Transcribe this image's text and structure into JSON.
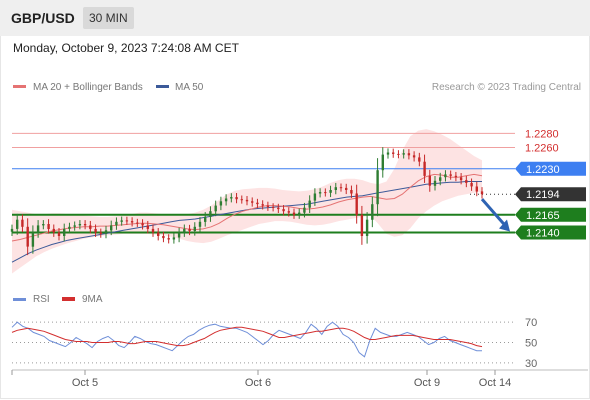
{
  "header": {
    "pair": "GBP/USD",
    "timeframe": "30 MIN"
  },
  "datetime": "Monday, October 9, 2023 7:24:08 AM CET",
  "legend": {
    "ma20": "MA 20 + Bollinger Bands",
    "ma50": "MA 50",
    "credit": "Research © 2023 Trading Central",
    "rsi": "RSI",
    "rsi_ma": "9MA"
  },
  "colors": {
    "candle_up": "#2e7d32",
    "candle_down": "#c62828",
    "ma20": "#e57373",
    "ma50": "#3c5a99",
    "bollinger_fill": "#fde3e3",
    "resistance": "#d32f2f",
    "pivot": "#3d7ff1",
    "support": "#1e7e1e",
    "last": "#333333",
    "arrow": "#2e63b3",
    "rsi": "#6f8fd8",
    "rsi_ma": "#d32f2f"
  },
  "chart_data": [
    {
      "type": "candlestick",
      "title": "GBP/USD 30 MIN",
      "price_range": [
        1.207,
        1.233
      ],
      "x_ticks": [
        "Oct 5",
        "Oct 6",
        "Oct 9",
        "Oct 14"
      ],
      "levels": [
        {
          "value": 1.228,
          "label": "1.2280",
          "kind": "resistance",
          "style": "label-text"
        },
        {
          "value": 1.226,
          "label": "1.2260",
          "kind": "resistance",
          "style": "label-text"
        },
        {
          "value": 1.223,
          "label": "1.2230",
          "kind": "pivot",
          "style": "label-box"
        },
        {
          "value": 1.2194,
          "label": "1.2194",
          "kind": "last",
          "style": "label-box"
        },
        {
          "value": 1.2165,
          "label": "1.2165",
          "kind": "support",
          "style": "label-box"
        },
        {
          "value": 1.214,
          "label": "1.2140",
          "kind": "support",
          "style": "label-box"
        }
      ],
      "close_path": [
        1.2145,
        1.2158,
        1.2148,
        1.212,
        1.214,
        1.215,
        1.2152,
        1.2145,
        1.214,
        1.2135,
        1.2145,
        1.2148,
        1.215,
        1.2152,
        1.215,
        1.2145,
        1.214,
        1.2138,
        1.2143,
        1.215,
        1.2155,
        1.2157,
        1.2156,
        1.2154,
        1.2153,
        1.215,
        1.2145,
        1.214,
        1.2135,
        1.2132,
        1.213,
        1.2133,
        1.214,
        1.2145,
        1.2142,
        1.2148,
        1.2155,
        1.2162,
        1.217,
        1.2178,
        1.2184,
        1.2188,
        1.219,
        1.2187,
        1.2186,
        1.2184,
        1.2182,
        1.218,
        1.2178,
        1.2176,
        1.2175,
        1.2173,
        1.217,
        1.2168,
        1.2165,
        1.2168,
        1.2175,
        1.2185,
        1.2195,
        1.2197,
        1.2196,
        1.22,
        1.2204,
        1.2203,
        1.22,
        1.2195,
        1.2165,
        1.2135,
        1.2158,
        1.218,
        1.2228,
        1.225,
        1.2253,
        1.2251,
        1.225,
        1.2252,
        1.2249,
        1.2246,
        1.224,
        1.222,
        1.2206,
        1.2213,
        1.2218,
        1.2222,
        1.222,
        1.2218,
        1.2214,
        1.221,
        1.2205,
        1.2198,
        1.2194
      ],
      "ma20_path": [
        1.2128,
        1.213,
        1.2133,
        1.2136,
        1.2139,
        1.2142,
        1.2144,
        1.2146,
        1.2147,
        1.2148,
        1.2148,
        1.2149,
        1.2149,
        1.215,
        1.2151,
        1.2152,
        1.2153,
        1.2153,
        1.2152,
        1.2151,
        1.2149,
        1.2147,
        1.2145,
        1.2144,
        1.2145,
        1.2148,
        1.2153,
        1.216,
        1.2166,
        1.217,
        1.2173,
        1.2176,
        1.2178,
        1.2178,
        1.2177,
        1.2176,
        1.2174,
        1.2173,
        1.2174,
        1.2176,
        1.2179,
        1.2183,
        1.2186,
        1.2188,
        1.219,
        1.2191,
        1.2189,
        1.2187,
        1.2188,
        1.2194,
        1.2204,
        1.2213,
        1.2219,
        1.2222,
        1.2221,
        1.2218,
        1.2218,
        1.222,
        1.2222,
        1.222
      ],
      "ma50_path": [
        1.2098,
        1.2104,
        1.211,
        1.2115,
        1.2119,
        1.2123,
        1.2126,
        1.2129,
        1.2131,
        1.2133,
        1.2135,
        1.2137,
        1.2139,
        1.2141,
        1.2143,
        1.2145,
        1.2147,
        1.2149,
        1.2151,
        1.2153,
        1.2155,
        1.2157,
        1.2158,
        1.2159,
        1.2161,
        1.2163,
        1.2165,
        1.2167,
        1.2169,
        1.2171,
        1.2173,
        1.2174,
        1.2175,
        1.2176,
        1.2177,
        1.2178,
        1.2179,
        1.218,
        1.2182,
        1.2184,
        1.2186,
        1.2188,
        1.219,
        1.2191,
        1.2192,
        1.2194,
        1.2196,
        1.2198,
        1.22,
        1.2202,
        1.2204,
        1.2206,
        1.2208,
        1.2209,
        1.221,
        1.2211,
        1.2211,
        1.2212,
        1.2212,
        1.2212
      ],
      "bollinger_upper": [
        1.2172,
        1.217,
        1.2168,
        1.2166,
        1.2166,
        1.2167,
        1.2167,
        1.2166,
        1.2165,
        1.2164,
        1.2163,
        1.2162,
        1.2162,
        1.2163,
        1.2164,
        1.2166,
        1.2168,
        1.2168,
        1.2167,
        1.2166,
        1.2165,
        1.2165,
        1.2166,
        1.2168,
        1.2172,
        1.2178,
        1.2186,
        1.2194,
        1.2199,
        1.2201,
        1.2202,
        1.2203,
        1.2203,
        1.2202,
        1.22,
        1.2199,
        1.2198,
        1.2199,
        1.2201,
        1.2205,
        1.221,
        1.2214,
        1.2216,
        1.2216,
        1.2214,
        1.221,
        1.2208,
        1.2212,
        1.223,
        1.2256,
        1.2276,
        1.2284,
        1.2286,
        1.2283,
        1.2278,
        1.2272,
        1.2264,
        1.2256,
        1.2248,
        1.2242
      ],
      "bollinger_lower": [
        1.2082,
        1.209,
        1.2098,
        1.2106,
        1.2112,
        1.2117,
        1.2121,
        1.2125,
        1.2128,
        1.2131,
        1.2133,
        1.2135,
        1.2136,
        1.2137,
        1.2138,
        1.2138,
        1.2138,
        1.2138,
        1.2137,
        1.2136,
        1.2134,
        1.2131,
        1.2128,
        1.2126,
        1.2125,
        1.2127,
        1.2131,
        1.2136,
        1.214,
        1.2144,
        1.2148,
        1.2152,
        1.2154,
        1.2156,
        1.2156,
        1.2155,
        1.2153,
        1.2151,
        1.215,
        1.2151,
        1.2153,
        1.2156,
        1.2158,
        1.216,
        1.2162,
        1.2164,
        1.2152,
        1.2138,
        1.2134,
        1.2136,
        1.2146,
        1.216,
        1.217,
        1.2178,
        1.2184,
        1.2188,
        1.2192,
        1.2194,
        1.2196,
        1.2198
      ],
      "projection": {
        "from": 1.219,
        "to": 1.214,
        "direction": "down"
      }
    },
    {
      "type": "line",
      "title": "RSI",
      "ylim": [
        25,
        80
      ],
      "yticks": [
        70,
        50,
        30
      ],
      "series": [
        {
          "name": "RSI",
          "values": [
            65,
            70,
            66,
            64,
            60,
            58,
            56,
            52,
            50,
            48,
            46,
            50,
            55,
            52,
            49,
            45,
            51,
            54,
            56,
            52,
            47,
            45,
            50,
            56,
            54,
            51,
            49,
            48,
            46,
            44,
            42,
            47,
            52,
            56,
            58,
            62,
            65,
            67,
            68,
            66,
            65,
            64,
            64,
            62,
            60,
            56,
            52,
            48,
            52,
            58,
            62,
            60,
            58,
            56,
            54,
            60,
            68,
            64,
            58,
            66,
            70,
            66,
            58,
            55,
            50,
            40,
            36,
            52,
            64,
            60,
            58,
            56,
            56,
            58,
            60,
            58,
            56,
            52,
            48,
            50,
            54,
            56,
            52,
            50,
            48,
            46,
            44,
            42,
            42
          ]
        },
        {
          "name": "9MA",
          "values": [
            60,
            62,
            63,
            64,
            63,
            62,
            61,
            59,
            57,
            55,
            53,
            52,
            51,
            51,
            51,
            50,
            50,
            50,
            50,
            51,
            51,
            50,
            49,
            49,
            50,
            51,
            51,
            51,
            50,
            49,
            48,
            47,
            47,
            48,
            50,
            52,
            54,
            57,
            60,
            62,
            63,
            64,
            65,
            65,
            64,
            63,
            62,
            61,
            59,
            57,
            55,
            55,
            56,
            57,
            58,
            59,
            60,
            61,
            61,
            62,
            63,
            64,
            64,
            63,
            61,
            58,
            55,
            53,
            53,
            54,
            55,
            56,
            57,
            57,
            57,
            57,
            56,
            55,
            54,
            53,
            53,
            53,
            53,
            52,
            51,
            50,
            49,
            47,
            46
          ]
        }
      ]
    }
  ]
}
